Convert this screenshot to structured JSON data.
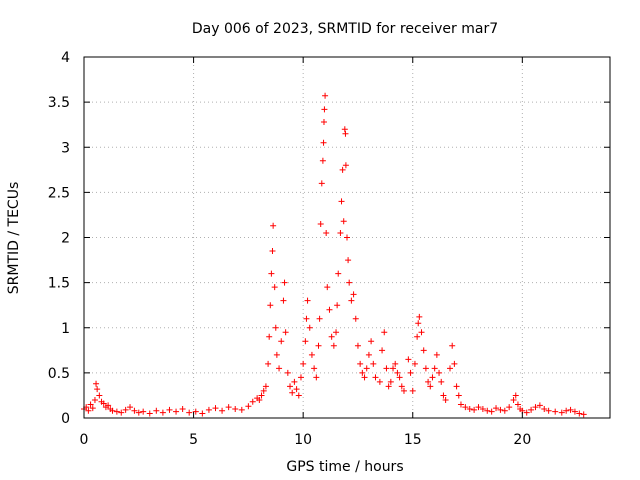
{
  "chart_data": {
    "type": "scatter",
    "title": "Day 006 of 2023, SRMTID for receiver mar7",
    "xlabel": "GPS time / hours",
    "ylabel": "SRMTID / TECUs",
    "xlim": [
      0,
      24
    ],
    "ylim": [
      0,
      4
    ],
    "xticks": [
      0,
      5,
      10,
      15,
      20
    ],
    "xtick_labels": [
      "0",
      "5",
      "10",
      "15",
      "20"
    ],
    "yticks": [
      0,
      0.5,
      1,
      1.5,
      2,
      2.5,
      3,
      3.5,
      4
    ],
    "ytick_labels": [
      "0",
      "0.5",
      "1",
      "1.5",
      "2",
      "2.5",
      "3",
      "3.5",
      "4"
    ],
    "grid": true,
    "marker": "+",
    "color": "#ff0000",
    "series": [
      {
        "name": "SRMTID",
        "points": [
          [
            0.0,
            0.1
          ],
          [
            0.1,
            0.12
          ],
          [
            0.2,
            0.08
          ],
          [
            0.3,
            0.15
          ],
          [
            0.4,
            0.11
          ],
          [
            0.5,
            0.2
          ],
          [
            0.55,
            0.38
          ],
          [
            0.6,
            0.32
          ],
          [
            0.7,
            0.25
          ],
          [
            0.8,
            0.18
          ],
          [
            0.9,
            0.16
          ],
          [
            1.0,
            0.12
          ],
          [
            1.1,
            0.14
          ],
          [
            1.2,
            0.1
          ],
          [
            1.3,
            0.08
          ],
          [
            1.5,
            0.07
          ],
          [
            1.7,
            0.06
          ],
          [
            1.9,
            0.09
          ],
          [
            2.1,
            0.12
          ],
          [
            2.3,
            0.08
          ],
          [
            2.5,
            0.06
          ],
          [
            2.7,
            0.07
          ],
          [
            3.0,
            0.05
          ],
          [
            3.3,
            0.08
          ],
          [
            3.6,
            0.06
          ],
          [
            3.9,
            0.09
          ],
          [
            4.2,
            0.07
          ],
          [
            4.5,
            0.1
          ],
          [
            4.8,
            0.06
          ],
          [
            5.1,
            0.07
          ],
          [
            5.4,
            0.05
          ],
          [
            5.7,
            0.09
          ],
          [
            6.0,
            0.11
          ],
          [
            6.3,
            0.08
          ],
          [
            6.6,
            0.12
          ],
          [
            6.9,
            0.1
          ],
          [
            7.2,
            0.09
          ],
          [
            7.5,
            0.13
          ],
          [
            7.7,
            0.18
          ],
          [
            7.9,
            0.22
          ],
          [
            8.0,
            0.2
          ],
          [
            8.1,
            0.25
          ],
          [
            8.2,
            0.3
          ],
          [
            8.3,
            0.35
          ],
          [
            8.4,
            0.6
          ],
          [
            8.45,
            0.9
          ],
          [
            8.5,
            1.25
          ],
          [
            8.55,
            1.6
          ],
          [
            8.6,
            1.85
          ],
          [
            8.63,
            2.13
          ],
          [
            8.7,
            1.45
          ],
          [
            8.75,
            1.0
          ],
          [
            8.8,
            0.7
          ],
          [
            8.9,
            0.55
          ],
          [
            9.0,
            0.85
          ],
          [
            9.1,
            1.3
          ],
          [
            9.15,
            1.5
          ],
          [
            9.2,
            0.95
          ],
          [
            9.3,
            0.5
          ],
          [
            9.4,
            0.35
          ],
          [
            9.5,
            0.28
          ],
          [
            9.6,
            0.4
          ],
          [
            9.7,
            0.32
          ],
          [
            9.8,
            0.25
          ],
          [
            9.9,
            0.45
          ],
          [
            10.0,
            0.6
          ],
          [
            10.1,
            0.85
          ],
          [
            10.15,
            1.1
          ],
          [
            10.2,
            1.3
          ],
          [
            10.3,
            1.0
          ],
          [
            10.4,
            0.7
          ],
          [
            10.5,
            0.55
          ],
          [
            10.6,
            0.45
          ],
          [
            10.7,
            0.8
          ],
          [
            10.75,
            1.1
          ],
          [
            10.8,
            2.15
          ],
          [
            10.85,
            2.6
          ],
          [
            10.9,
            2.85
          ],
          [
            10.93,
            3.05
          ],
          [
            10.95,
            3.28
          ],
          [
            10.97,
            3.42
          ],
          [
            11.0,
            3.57
          ],
          [
            11.05,
            2.05
          ],
          [
            11.1,
            1.45
          ],
          [
            11.2,
            1.2
          ],
          [
            11.3,
            0.9
          ],
          [
            11.4,
            0.8
          ],
          [
            11.5,
            0.95
          ],
          [
            11.55,
            1.25
          ],
          [
            11.6,
            1.6
          ],
          [
            11.7,
            2.05
          ],
          [
            11.75,
            2.4
          ],
          [
            11.8,
            2.75
          ],
          [
            11.85,
            2.18
          ],
          [
            11.9,
            3.2
          ],
          [
            11.93,
            3.15
          ],
          [
            11.95,
            2.8
          ],
          [
            12.0,
            2.0
          ],
          [
            12.05,
            1.75
          ],
          [
            12.1,
            1.5
          ],
          [
            12.2,
            1.3
          ],
          [
            12.3,
            1.37
          ],
          [
            12.4,
            1.1
          ],
          [
            12.5,
            0.8
          ],
          [
            12.6,
            0.6
          ],
          [
            12.7,
            0.5
          ],
          [
            12.8,
            0.45
          ],
          [
            12.9,
            0.55
          ],
          [
            13.0,
            0.7
          ],
          [
            13.1,
            0.85
          ],
          [
            13.2,
            0.6
          ],
          [
            13.3,
            0.45
          ],
          [
            13.5,
            0.4
          ],
          [
            13.6,
            0.75
          ],
          [
            13.7,
            0.95
          ],
          [
            13.8,
            0.55
          ],
          [
            13.9,
            0.35
          ],
          [
            14.0,
            0.4
          ],
          [
            14.1,
            0.55
          ],
          [
            14.2,
            0.6
          ],
          [
            14.3,
            0.5
          ],
          [
            14.4,
            0.45
          ],
          [
            14.5,
            0.35
          ],
          [
            14.6,
            0.3
          ],
          [
            14.8,
            0.65
          ],
          [
            14.9,
            0.5
          ],
          [
            15.0,
            0.3
          ],
          [
            15.1,
            0.6
          ],
          [
            15.2,
            0.9
          ],
          [
            15.25,
            1.05
          ],
          [
            15.3,
            1.12
          ],
          [
            15.4,
            0.95
          ],
          [
            15.5,
            0.75
          ],
          [
            15.6,
            0.55
          ],
          [
            15.7,
            0.4
          ],
          [
            15.8,
            0.35
          ],
          [
            15.9,
            0.45
          ],
          [
            16.0,
            0.55
          ],
          [
            16.1,
            0.7
          ],
          [
            16.2,
            0.5
          ],
          [
            16.3,
            0.4
          ],
          [
            16.4,
            0.25
          ],
          [
            16.5,
            0.2
          ],
          [
            16.7,
            0.55
          ],
          [
            16.8,
            0.8
          ],
          [
            16.9,
            0.6
          ],
          [
            17.0,
            0.35
          ],
          [
            17.1,
            0.25
          ],
          [
            17.2,
            0.15
          ],
          [
            17.4,
            0.12
          ],
          [
            17.6,
            0.1
          ],
          [
            17.8,
            0.09
          ],
          [
            18.0,
            0.12
          ],
          [
            18.2,
            0.1
          ],
          [
            18.4,
            0.08
          ],
          [
            18.6,
            0.07
          ],
          [
            18.8,
            0.11
          ],
          [
            19.0,
            0.09
          ],
          [
            19.2,
            0.08
          ],
          [
            19.4,
            0.12
          ],
          [
            19.6,
            0.2
          ],
          [
            19.7,
            0.25
          ],
          [
            19.8,
            0.15
          ],
          [
            19.9,
            0.1
          ],
          [
            20.0,
            0.08
          ],
          [
            20.2,
            0.06
          ],
          [
            20.4,
            0.09
          ],
          [
            20.6,
            0.12
          ],
          [
            20.8,
            0.14
          ],
          [
            21.0,
            0.1
          ],
          [
            21.2,
            0.08
          ],
          [
            21.5,
            0.07
          ],
          [
            21.8,
            0.06
          ],
          [
            22.0,
            0.08
          ],
          [
            22.2,
            0.09
          ],
          [
            22.4,
            0.07
          ],
          [
            22.6,
            0.05
          ],
          [
            22.8,
            0.04
          ]
        ]
      }
    ]
  }
}
